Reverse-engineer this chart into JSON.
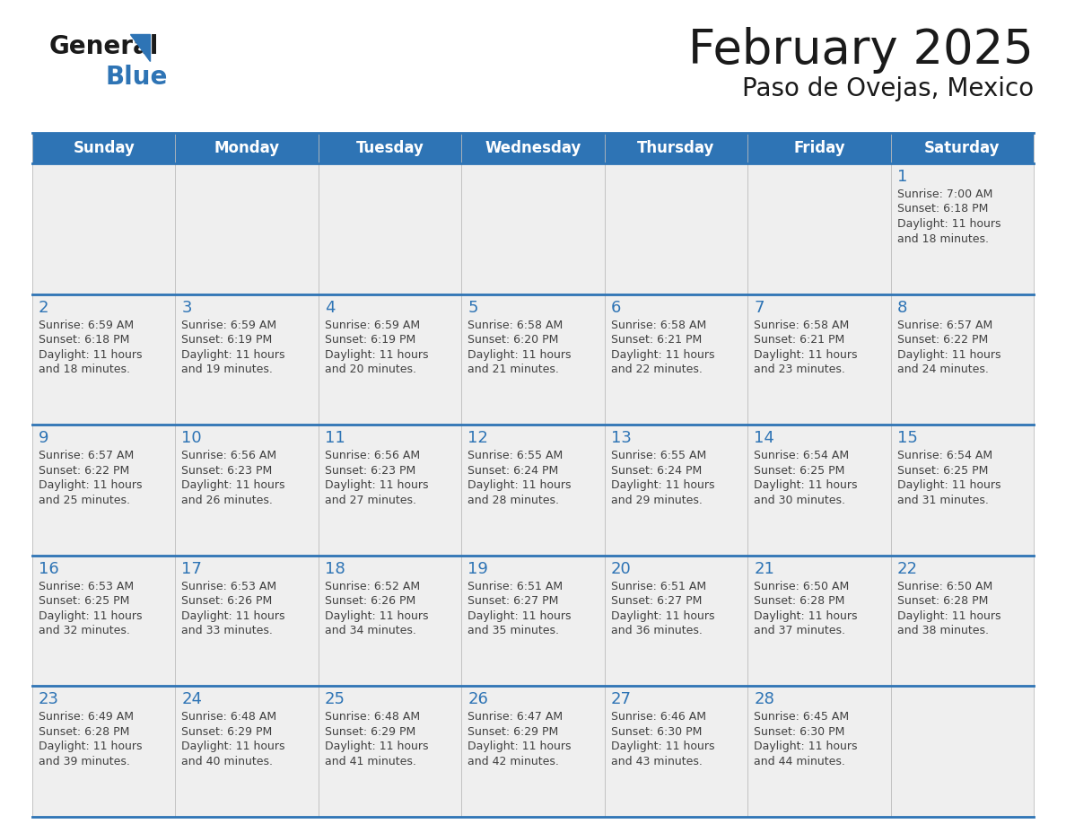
{
  "title": "February 2025",
  "subtitle": "Paso de Ovejas, Mexico",
  "days_of_week": [
    "Sunday",
    "Monday",
    "Tuesday",
    "Wednesday",
    "Thursday",
    "Friday",
    "Saturday"
  ],
  "header_bg": "#2E74B5",
  "header_text": "#FFFFFF",
  "cell_bg_light": "#EFEFEF",
  "border_color": "#2E74B5",
  "text_color": "#404040",
  "day_num_color": "#2E74B5",
  "logo_general_color": "#1a1a1a",
  "logo_blue_color": "#2E74B5",
  "logo_triangle_color": "#2E74B5",
  "calendar_data": [
    [
      null,
      null,
      null,
      null,
      null,
      null,
      {
        "day": 1,
        "sunrise": "7:00 AM",
        "sunset": "6:18 PM",
        "daylight": "11 hours and 18 minutes."
      }
    ],
    [
      {
        "day": 2,
        "sunrise": "6:59 AM",
        "sunset": "6:18 PM",
        "daylight": "11 hours and 18 minutes."
      },
      {
        "day": 3,
        "sunrise": "6:59 AM",
        "sunset": "6:19 PM",
        "daylight": "11 hours and 19 minutes."
      },
      {
        "day": 4,
        "sunrise": "6:59 AM",
        "sunset": "6:19 PM",
        "daylight": "11 hours and 20 minutes."
      },
      {
        "day": 5,
        "sunrise": "6:58 AM",
        "sunset": "6:20 PM",
        "daylight": "11 hours and 21 minutes."
      },
      {
        "day": 6,
        "sunrise": "6:58 AM",
        "sunset": "6:21 PM",
        "daylight": "11 hours and 22 minutes."
      },
      {
        "day": 7,
        "sunrise": "6:58 AM",
        "sunset": "6:21 PM",
        "daylight": "11 hours and 23 minutes."
      },
      {
        "day": 8,
        "sunrise": "6:57 AM",
        "sunset": "6:22 PM",
        "daylight": "11 hours and 24 minutes."
      }
    ],
    [
      {
        "day": 9,
        "sunrise": "6:57 AM",
        "sunset": "6:22 PM",
        "daylight": "11 hours and 25 minutes."
      },
      {
        "day": 10,
        "sunrise": "6:56 AM",
        "sunset": "6:23 PM",
        "daylight": "11 hours and 26 minutes."
      },
      {
        "day": 11,
        "sunrise": "6:56 AM",
        "sunset": "6:23 PM",
        "daylight": "11 hours and 27 minutes."
      },
      {
        "day": 12,
        "sunrise": "6:55 AM",
        "sunset": "6:24 PM",
        "daylight": "11 hours and 28 minutes."
      },
      {
        "day": 13,
        "sunrise": "6:55 AM",
        "sunset": "6:24 PM",
        "daylight": "11 hours and 29 minutes."
      },
      {
        "day": 14,
        "sunrise": "6:54 AM",
        "sunset": "6:25 PM",
        "daylight": "11 hours and 30 minutes."
      },
      {
        "day": 15,
        "sunrise": "6:54 AM",
        "sunset": "6:25 PM",
        "daylight": "11 hours and 31 minutes."
      }
    ],
    [
      {
        "day": 16,
        "sunrise": "6:53 AM",
        "sunset": "6:25 PM",
        "daylight": "11 hours and 32 minutes."
      },
      {
        "day": 17,
        "sunrise": "6:53 AM",
        "sunset": "6:26 PM",
        "daylight": "11 hours and 33 minutes."
      },
      {
        "day": 18,
        "sunrise": "6:52 AM",
        "sunset": "6:26 PM",
        "daylight": "11 hours and 34 minutes."
      },
      {
        "day": 19,
        "sunrise": "6:51 AM",
        "sunset": "6:27 PM",
        "daylight": "11 hours and 35 minutes."
      },
      {
        "day": 20,
        "sunrise": "6:51 AM",
        "sunset": "6:27 PM",
        "daylight": "11 hours and 36 minutes."
      },
      {
        "day": 21,
        "sunrise": "6:50 AM",
        "sunset": "6:28 PM",
        "daylight": "11 hours and 37 minutes."
      },
      {
        "day": 22,
        "sunrise": "6:50 AM",
        "sunset": "6:28 PM",
        "daylight": "11 hours and 38 minutes."
      }
    ],
    [
      {
        "day": 23,
        "sunrise": "6:49 AM",
        "sunset": "6:28 PM",
        "daylight": "11 hours and 39 minutes."
      },
      {
        "day": 24,
        "sunrise": "6:48 AM",
        "sunset": "6:29 PM",
        "daylight": "11 hours and 40 minutes."
      },
      {
        "day": 25,
        "sunrise": "6:48 AM",
        "sunset": "6:29 PM",
        "daylight": "11 hours and 41 minutes."
      },
      {
        "day": 26,
        "sunrise": "6:47 AM",
        "sunset": "6:29 PM",
        "daylight": "11 hours and 42 minutes."
      },
      {
        "day": 27,
        "sunrise": "6:46 AM",
        "sunset": "6:30 PM",
        "daylight": "11 hours and 43 minutes."
      },
      {
        "day": 28,
        "sunrise": "6:45 AM",
        "sunset": "6:30 PM",
        "daylight": "11 hours and 44 minutes."
      },
      null
    ]
  ]
}
